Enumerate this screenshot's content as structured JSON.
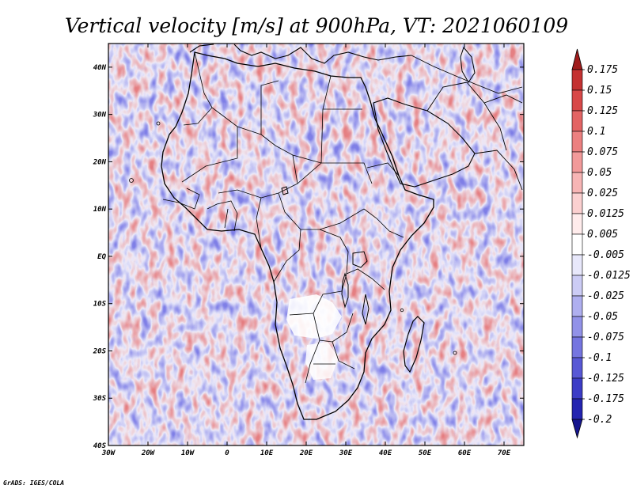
{
  "title": "Vertical velocity [m/s] at 900hPa, VT: 2021060109",
  "footer": "GrADS: IGES/COLA",
  "map": {
    "longitude_labels": [
      "30W",
      "20W",
      "10W",
      "0",
      "10E",
      "20E",
      "30E",
      "40E",
      "50E",
      "60E",
      "70E"
    ],
    "latitude_labels": [
      "40N",
      "30N",
      "20N",
      "10N",
      "EQ",
      "10S",
      "20S",
      "30S",
      "40S"
    ],
    "lon_range": [
      -30,
      75
    ],
    "lat_range": [
      -40,
      45
    ]
  },
  "legend": {
    "labels": [
      "0.175",
      "0.15",
      "0.125",
      "0.1",
      "0.075",
      "0.05",
      "0.025",
      "0.0125",
      "0.005",
      "-0.005",
      "-0.0125",
      "-0.025",
      "-0.05",
      "-0.075",
      "-0.1",
      "-0.125",
      "-0.175",
      "-0.2"
    ],
    "colors": [
      "#a01c1c",
      "#c43232",
      "#d84848",
      "#e36464",
      "#ec8080",
      "#f29a9a",
      "#f7b5b5",
      "#fbd0d0",
      "#ffecec",
      "#ffffff",
      "#e8e8fb",
      "#ccccf5",
      "#afafef",
      "#9292e8",
      "#7575e0",
      "#5858d5",
      "#3c3cc6",
      "#2424b0",
      "#16168f"
    ]
  }
}
